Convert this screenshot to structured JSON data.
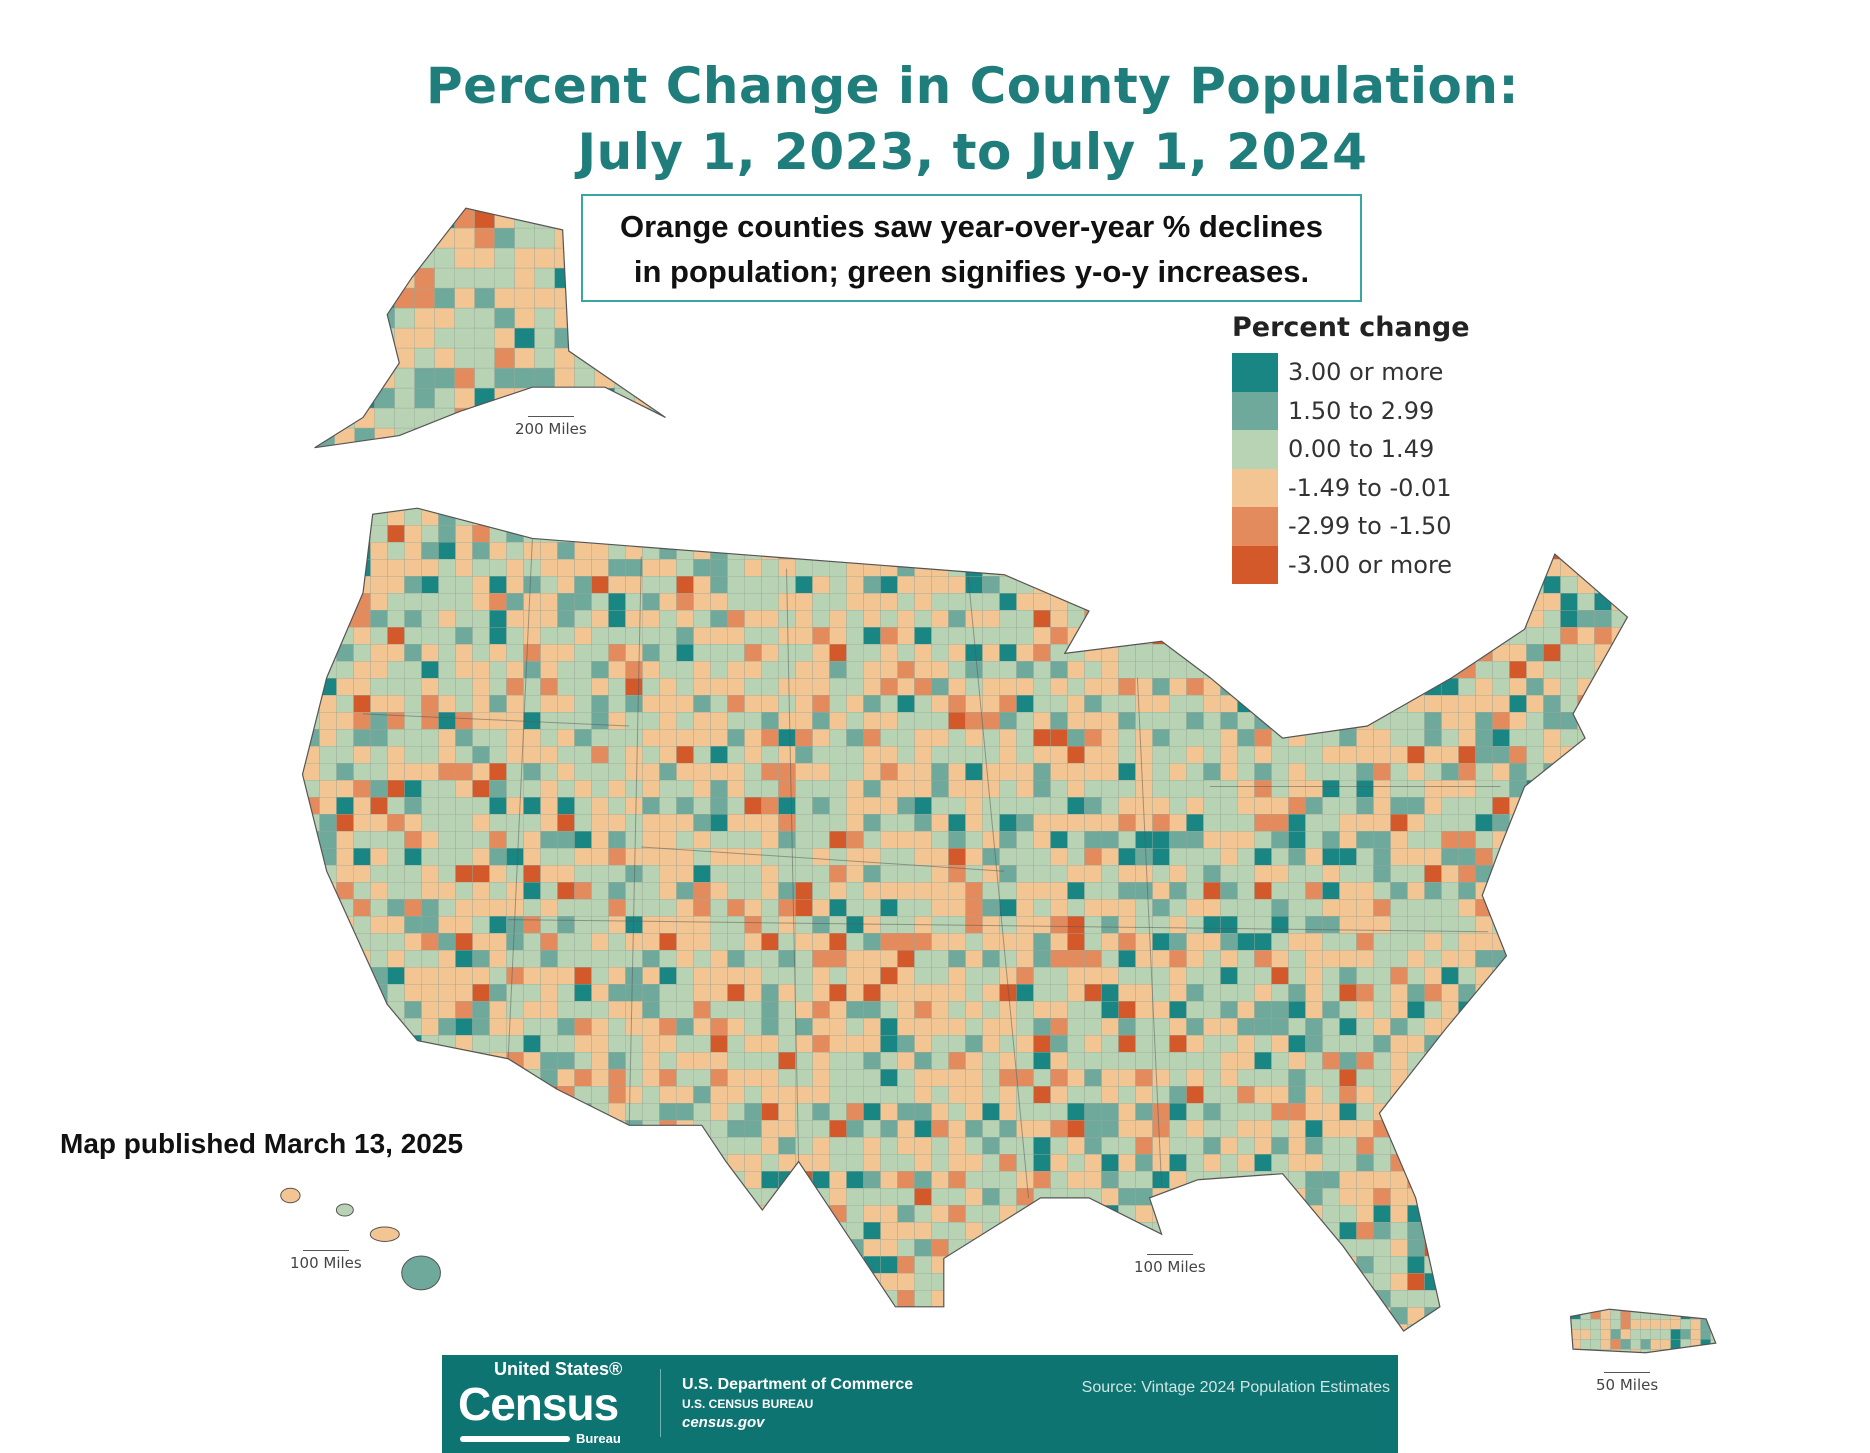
{
  "title": {
    "line1": "Percent Change in County Population:",
    "line2": "July 1, 2023, to July 1, 2024"
  },
  "callout": {
    "line1": "Orange counties saw year-over-year % declines",
    "line2": "in population; green signifies y-o-y increases."
  },
  "legend": {
    "title": "Percent change",
    "items": [
      {
        "label": "3.00 or more",
        "color": "#1a8683"
      },
      {
        "label": "1.50 to 2.99",
        "color": "#6ea99b"
      },
      {
        "label": "0.00 to 1.49",
        "color": "#b8d3b3"
      },
      {
        "label": "-1.49 to -0.01",
        "color": "#f3c592"
      },
      {
        "label": "-2.99 to -1.50",
        "color": "#e38b5d"
      },
      {
        "label": "-3.00 or more",
        "color": "#d3582a"
      }
    ]
  },
  "published": "Map published March 13, 2025",
  "scales": {
    "alaska": "200 Miles",
    "hawaii": "100 Miles",
    "contiguous": "100 Miles",
    "puerto_rico": "50 Miles"
  },
  "footer": {
    "logo_top": "United States®",
    "logo_main": "Census",
    "logo_bottom": "Bureau",
    "department": "U.S. Department of Commerce",
    "bureau": "U.S. CENSUS BUREAU",
    "website": "census.gov",
    "source": "Source: Vintage 2024 Population Estimates"
  }
}
